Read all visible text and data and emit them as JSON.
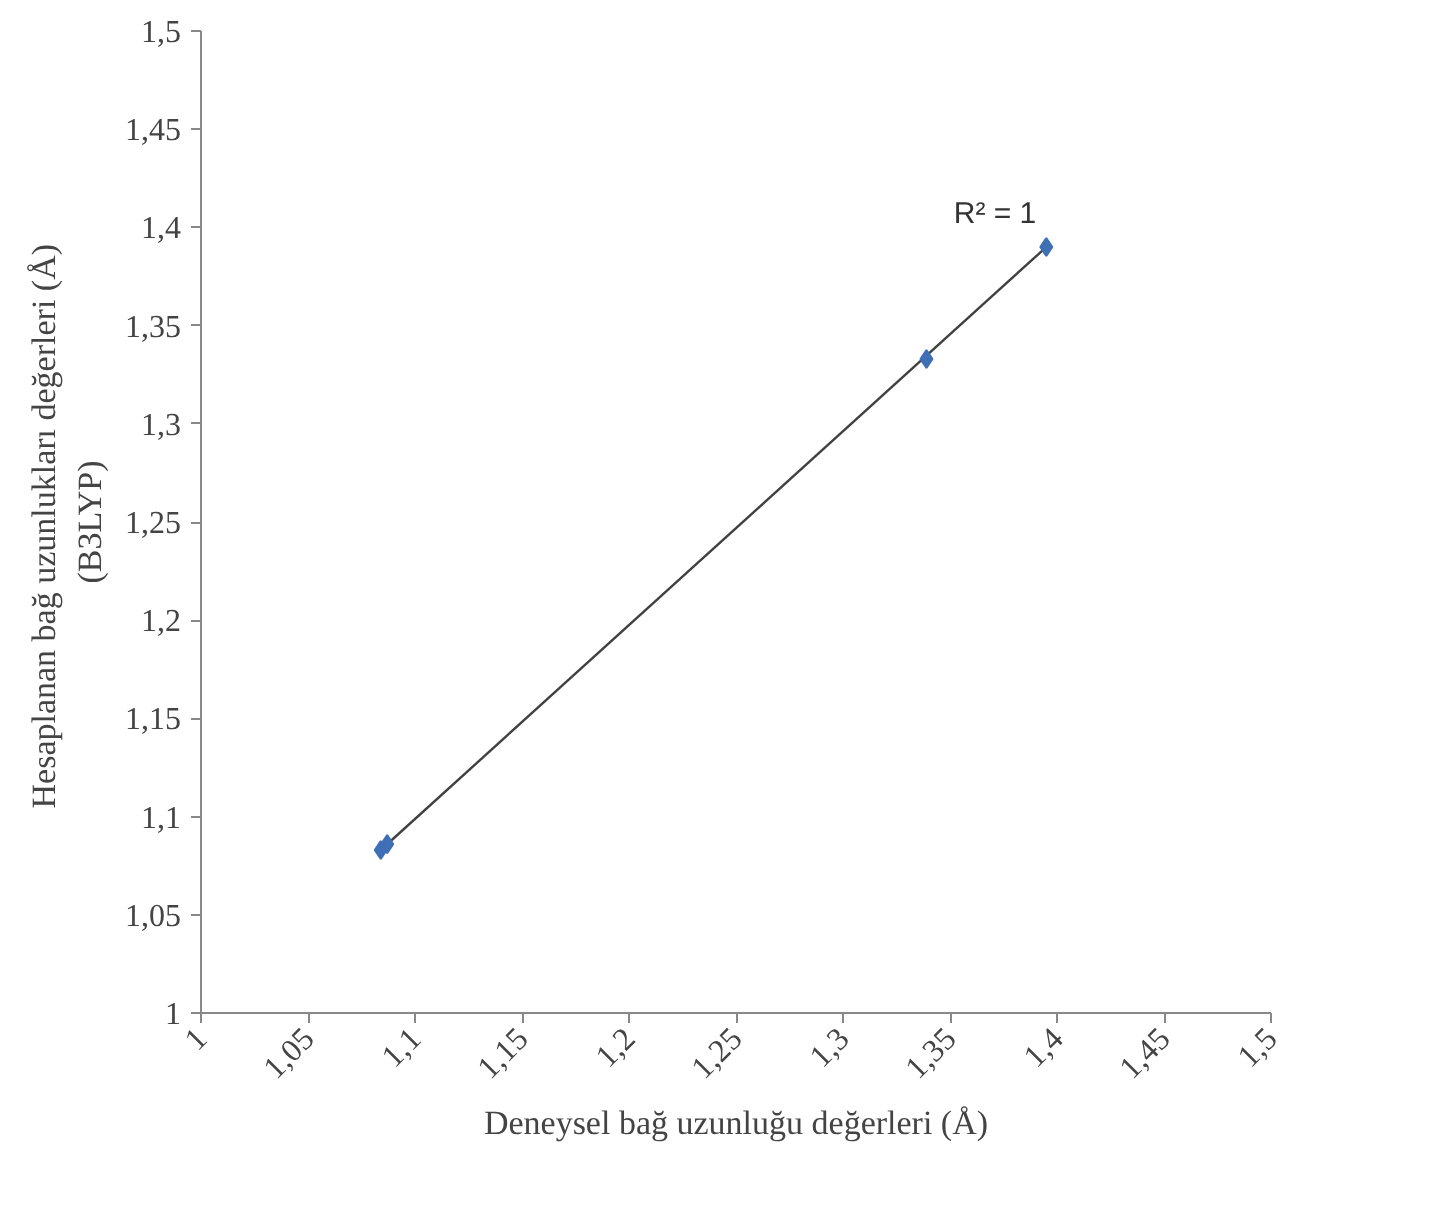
{
  "chart_data": {
    "type": "scatter",
    "xlabel": "Deneysel bağ uzunluğu değerleri (Å)",
    "ylabel": "Hesaplanan bağ  uzunlukları değerleri (Å)\n(B3LYP)",
    "xlim": [
      1,
      1.5
    ],
    "ylim": [
      1,
      1.5
    ],
    "xticks": [
      {
        "value": 1,
        "label": "1"
      },
      {
        "value": 1.05,
        "label": "1,05"
      },
      {
        "value": 1.1,
        "label": "1,1"
      },
      {
        "value": 1.15,
        "label": "1,15"
      },
      {
        "value": 1.2,
        "label": "1,2"
      },
      {
        "value": 1.25,
        "label": "1,25"
      },
      {
        "value": 1.3,
        "label": "1,3"
      },
      {
        "value": 1.35,
        "label": "1,35"
      },
      {
        "value": 1.4,
        "label": "1,4"
      },
      {
        "value": 1.45,
        "label": "1,45"
      },
      {
        "value": 1.5,
        "label": "1,5"
      }
    ],
    "yticks": [
      {
        "value": 1,
        "label": "1"
      },
      {
        "value": 1.05,
        "label": "1,05"
      },
      {
        "value": 1.1,
        "label": "1,1"
      },
      {
        "value": 1.15,
        "label": "1,15"
      },
      {
        "value": 1.2,
        "label": "1,2"
      },
      {
        "value": 1.25,
        "label": "1,25"
      },
      {
        "value": 1.3,
        "label": "1,3"
      },
      {
        "value": 1.35,
        "label": "1,35"
      },
      {
        "value": 1.4,
        "label": "1,4"
      },
      {
        "value": 1.45,
        "label": "1,45"
      },
      {
        "value": 1.5,
        "label": "1,5"
      }
    ],
    "grid": false,
    "marker": "diamond",
    "series": [
      {
        "type": "line",
        "marker": "none",
        "color": "#404040",
        "x": [
          1.084,
          1.395
        ],
        "values": [
          1.083,
          1.39
        ]
      },
      {
        "color": "#3f6fb5",
        "x": [
          1.084,
          1.087,
          1.339,
          1.395
        ],
        "values": [
          1.083,
          1.086,
          1.333,
          1.39
        ]
      }
    ],
    "annotations": [
      "R² = 1"
    ]
  }
}
